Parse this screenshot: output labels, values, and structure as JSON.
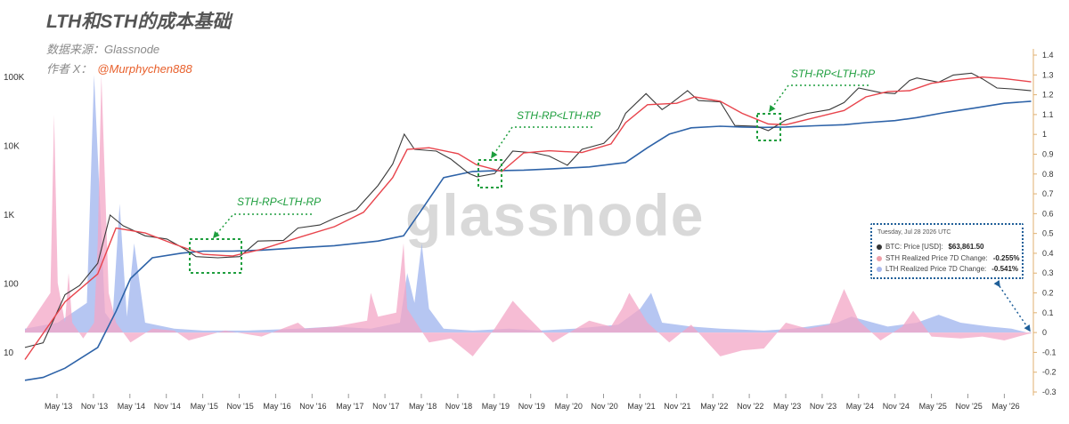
{
  "header": {
    "title": "LTH和STH的成本基础",
    "source": "数据来源：Glassnode",
    "author_prefix": "作者 X：",
    "author_handle": "@Murphychen888"
  },
  "watermark": "glassnode",
  "annotations": [
    {
      "text": "STH-RP<LTH-RP"
    },
    {
      "text": "STH-RP<LTH-RP"
    },
    {
      "text": "STH-RP<LTH-RP"
    }
  ],
  "tooltip": {
    "date": "Tuesday, Jul 28 2026 UTC",
    "rows": [
      {
        "label": "BTC: Price [USD]:",
        "value": "$63,861.50",
        "color": "#333333"
      },
      {
        "label": "STH Realized Price 7D Change:",
        "value": "-0.255%",
        "color": "#ef9fa8"
      },
      {
        "label": "LTH Realized Price 7D Change:",
        "value": "-0.541%",
        "color": "#a8b8ee"
      }
    ]
  },
  "chart_data": {
    "type": "line",
    "x_ticks": [
      "May '13",
      "Nov '13",
      "May '14",
      "Nov '14",
      "May '15",
      "Nov '15",
      "May '16",
      "Nov '16",
      "May '17",
      "Nov '17",
      "May '18",
      "Nov '18",
      "May '19",
      "Nov '19",
      "May '20",
      "Nov '20",
      "May '21",
      "Nov '21",
      "May '22",
      "Nov '22",
      "May '23",
      "Nov '23",
      "May '24",
      "Nov '24",
      "May '25",
      "Nov '25",
      "May '26"
    ],
    "y_left": {
      "scale": "log",
      "ticks": [
        "100K",
        "10K",
        "1K",
        "100",
        "10"
      ],
      "values": [
        100000,
        10000,
        1000,
        100,
        10
      ]
    },
    "y_right": {
      "ticks": [
        "1.4",
        "1.3",
        "1.2",
        "1.1",
        "1",
        "0.9",
        "0.8",
        "0.7",
        "0.6",
        "0.5",
        "0.4",
        "0.3",
        "0.2",
        "0.1",
        "0",
        "-0.1",
        "-0.2",
        "-0.3"
      ],
      "range": [
        -0.3,
        1.4
      ]
    },
    "colors": {
      "price": "#3a3a3a",
      "sth": "#e8444c",
      "lth": "#2e63a8",
      "sth_change": "#f3a6c6",
      "lth_change": "#9eb3ee",
      "right_axis": "#e0b070"
    },
    "series": [
      {
        "key": "price",
        "x": [
          2012.75,
          2013.0,
          2013.3,
          2013.5,
          2013.75,
          2013.92,
          2014.1,
          2014.4,
          2014.7,
          2014.95,
          2015.1,
          2015.4,
          2015.7,
          2015.95,
          2016.3,
          2016.5,
          2016.8,
          2017.0,
          2017.3,
          2017.6,
          2017.8,
          2017.96,
          2018.1,
          2018.4,
          2018.6,
          2018.85,
          2018.96,
          2019.2,
          2019.45,
          2019.75,
          2019.95,
          2020.2,
          2020.4,
          2020.7,
          2020.9,
          2021.0,
          2021.28,
          2021.5,
          2021.6,
          2021.85,
          2022.0,
          2022.3,
          2022.5,
          2022.8,
          2022.96,
          2023.2,
          2023.5,
          2023.8,
          2024.0,
          2024.2,
          2024.5,
          2024.7,
          2024.9,
          2025.0,
          2025.3,
          2025.5,
          2025.75,
          2025.9,
          2026.1,
          2026.3,
          2026.57
        ],
        "y": [
          12,
          14,
          70,
          95,
          200,
          1000,
          700,
          500,
          450,
          320,
          250,
          240,
          250,
          420,
          430,
          650,
          720,
          900,
          1200,
          2700,
          5500,
          15000,
          9000,
          8500,
          6500,
          4000,
          3600,
          4000,
          8500,
          8000,
          7200,
          5300,
          9000,
          11000,
          18000,
          30000,
          58000,
          34000,
          40000,
          64000,
          46000,
          44000,
          20000,
          19500,
          16800,
          24000,
          30000,
          34000,
          43000,
          70000,
          60000,
          58000,
          90000,
          98000,
          85000,
          108000,
          115000,
          95000,
          70000,
          68000,
          63861.5
        ]
      },
      {
        "key": "sth_realized_price",
        "x": [
          2012.75,
          2013.3,
          2013.75,
          2014.0,
          2014.4,
          2014.8,
          2015.2,
          2015.6,
          2016.0,
          2016.5,
          2017.0,
          2017.4,
          2017.8,
          2018.0,
          2018.3,
          2018.7,
          2018.95,
          2019.3,
          2019.6,
          2019.95,
          2020.4,
          2020.8,
          2021.0,
          2021.3,
          2021.7,
          2021.95,
          2022.3,
          2022.6,
          2022.96,
          2023.2,
          2023.6,
          2024.0,
          2024.3,
          2024.6,
          2024.9,
          2025.2,
          2025.6,
          2025.9,
          2026.2,
          2026.57
        ],
        "y": [
          8,
          55,
          140,
          650,
          550,
          380,
          270,
          255,
          320,
          470,
          680,
          1100,
          3500,
          9000,
          9500,
          7800,
          5400,
          4300,
          8000,
          8600,
          8100,
          10800,
          22000,
          40000,
          42000,
          52000,
          45000,
          30000,
          21000,
          20500,
          26000,
          33000,
          52000,
          62000,
          64000,
          82000,
          94000,
          101000,
          96000,
          86000
        ]
      },
      {
        "key": "lth_realized_price",
        "x": [
          2012.75,
          2013.0,
          2013.3,
          2013.75,
          2014.0,
          2014.2,
          2014.5,
          2014.9,
          2015.2,
          2015.6,
          2016.0,
          2016.6,
          2017.0,
          2017.6,
          2017.95,
          2018.2,
          2018.5,
          2018.9,
          2019.2,
          2019.6,
          2020.0,
          2020.5,
          2021.0,
          2021.3,
          2021.6,
          2021.9,
          2022.3,
          2022.6,
          2022.9,
          2023.2,
          2023.6,
          2024.0,
          2024.3,
          2024.7,
          2025.0,
          2025.4,
          2025.8,
          2026.2,
          2026.57
        ],
        "y": [
          4,
          4.4,
          6,
          12,
          40,
          120,
          240,
          280,
          300,
          300,
          310,
          340,
          360,
          420,
          500,
          1200,
          3500,
          4300,
          4400,
          4500,
          4700,
          5000,
          5800,
          9500,
          15000,
          18500,
          19500,
          19000,
          18800,
          19000,
          19800,
          20500,
          22000,
          23500,
          26000,
          31000,
          36000,
          42000,
          45000
        ]
      },
      {
        "key": "sth_realized_price_7d_change",
        "x": [
          2012.75,
          2013.1,
          2013.15,
          2013.2,
          2013.3,
          2013.35,
          2013.4,
          2013.55,
          2013.7,
          2013.75,
          2013.8,
          2013.9,
          2014.0,
          2014.2,
          2014.5,
          2014.8,
          2015.0,
          2015.5,
          2016.0,
          2016.5,
          2016.6,
          2017.0,
          2017.45,
          2017.5,
          2017.6,
          2017.85,
          2017.95,
          2018.0,
          2018.3,
          2018.6,
          2018.9,
          2019.2,
          2019.45,
          2019.6,
          2020.0,
          2020.5,
          2020.8,
          2020.95,
          2021.05,
          2021.3,
          2021.6,
          2021.9,
          2022.3,
          2022.6,
          2022.9,
          2023.2,
          2023.5,
          2023.8,
          2024.0,
          2024.2,
          2024.5,
          2024.8,
          2024.95,
          2025.2,
          2025.6,
          2025.9,
          2026.2,
          2026.57
        ],
        "y": [
          0.01,
          0.2,
          1.1,
          0.25,
          0.05,
          0.3,
          0.05,
          -0.03,
          0.05,
          0.45,
          1.3,
          0.2,
          0.05,
          -0.05,
          0.02,
          0.01,
          -0.04,
          0.01,
          -0.02,
          0.05,
          0.02,
          0.03,
          0.06,
          0.2,
          0.08,
          0.1,
          0.45,
          0.12,
          -0.05,
          -0.03,
          -0.12,
          0.02,
          0.16,
          0.1,
          -0.05,
          0.06,
          0.03,
          0.12,
          0.2,
          0.05,
          -0.05,
          0.04,
          -0.12,
          -0.09,
          -0.08,
          0.05,
          0.02,
          0.04,
          0.22,
          0.06,
          -0.04,
          0.03,
          0.11,
          -0.02,
          -0.03,
          -0.02,
          -0.04,
          -0.0026
        ]
      },
      {
        "key": "lth_realized_price_7d_change",
        "x": [
          2012.75,
          2013.2,
          2013.6,
          2013.7,
          2013.85,
          2013.95,
          2014.05,
          2014.15,
          2014.25,
          2014.4,
          2014.8,
          2015.2,
          2015.8,
          2016.5,
          2017.0,
          2017.5,
          2017.9,
          2018.0,
          2018.1,
          2018.2,
          2018.3,
          2018.5,
          2018.9,
          2019.4,
          2019.8,
          2020.3,
          2020.9,
          2021.2,
          2021.35,
          2021.5,
          2021.9,
          2022.3,
          2022.9,
          2023.3,
          2023.9,
          2024.1,
          2024.3,
          2024.6,
          2025.0,
          2025.3,
          2025.6,
          2025.8,
          2026.0,
          2026.3,
          2026.57
        ],
        "y": [
          0.02,
          0.05,
          0.15,
          1.3,
          0.1,
          0.05,
          0.65,
          0.08,
          0.45,
          0.05,
          0.02,
          0.01,
          0.01,
          0.02,
          0.03,
          0.02,
          0.05,
          0.3,
          0.15,
          0.45,
          0.12,
          0.02,
          0.01,
          0.02,
          0.01,
          0.02,
          0.04,
          0.12,
          0.2,
          0.05,
          0.03,
          0.02,
          0.01,
          0.02,
          0.05,
          0.08,
          0.06,
          0.03,
          0.05,
          0.09,
          0.05,
          0.04,
          0.03,
          0.02,
          -0.0054
        ]
      }
    ]
  }
}
